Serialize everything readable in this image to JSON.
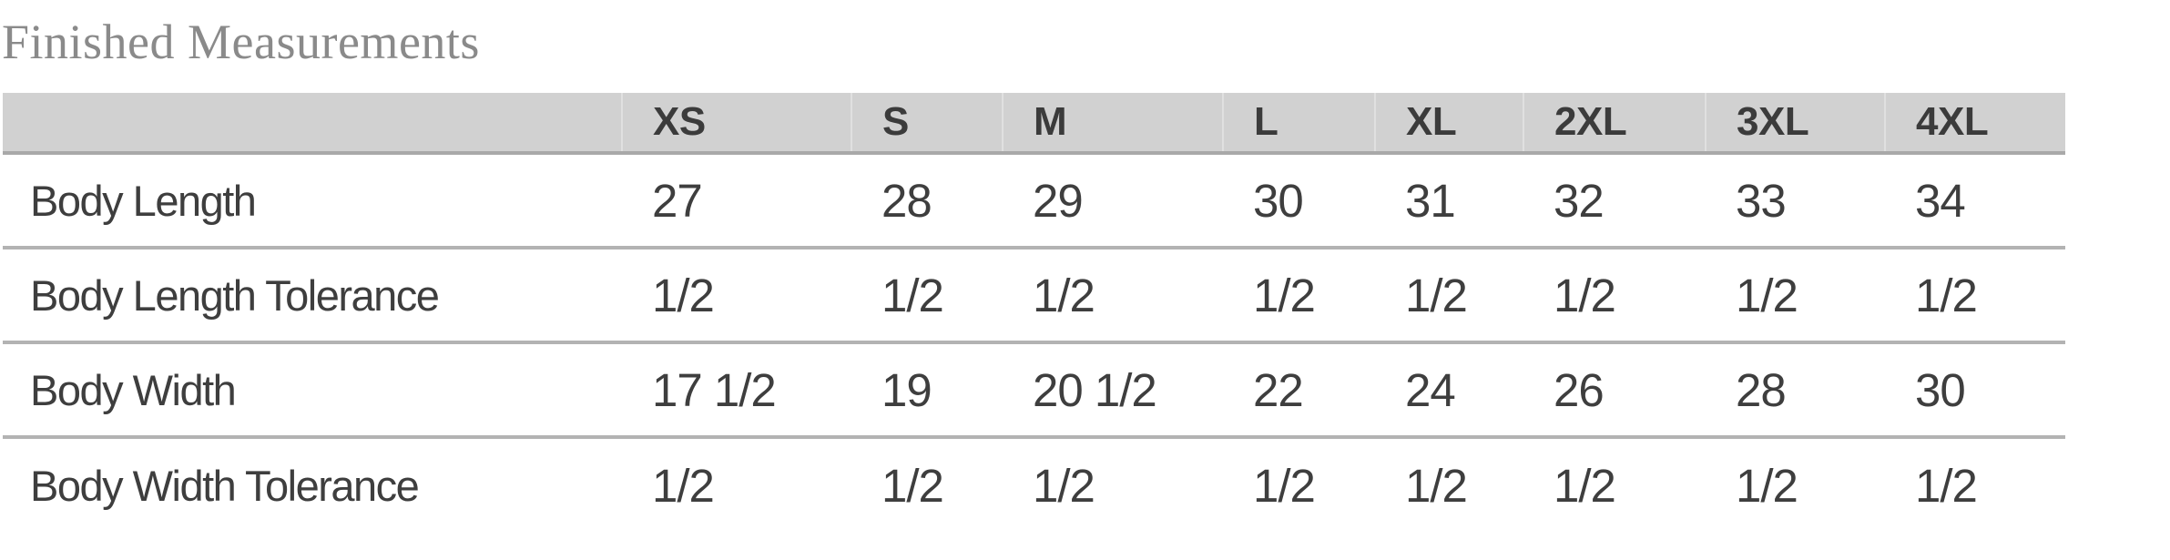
{
  "title": "Finished Measurements",
  "table": {
    "columns": [
      "",
      "XS",
      "S",
      "M",
      "L",
      "XL",
      "2XL",
      "3XL",
      "4XL"
    ],
    "rows": [
      {
        "label": "Body Length",
        "values": [
          "27",
          "28",
          "29",
          "30",
          "31",
          "32",
          "33",
          "34"
        ]
      },
      {
        "label": "Body Length Tolerance",
        "values": [
          "1/2",
          "1/2",
          "1/2",
          "1/2",
          "1/2",
          "1/2",
          "1/2",
          "1/2"
        ]
      },
      {
        "label": "Body Width",
        "values": [
          "17 1/2",
          "19",
          "20 1/2",
          "22",
          "24",
          "26",
          "28",
          "30"
        ]
      },
      {
        "label": "Body Width Tolerance",
        "values": [
          "1/2",
          "1/2",
          "1/2",
          "1/2",
          "1/2",
          "1/2",
          "1/2",
          "1/2"
        ]
      }
    ]
  },
  "colors": {
    "title_text": "#8a8a8a",
    "header_background": "#d1d1d1",
    "header_text": "#3b3b3b",
    "header_bottom_border": "#a9a9a9",
    "row_separator": "#b3b3b3",
    "body_text": "#3e3e3e",
    "page_background": "#ffffff"
  }
}
